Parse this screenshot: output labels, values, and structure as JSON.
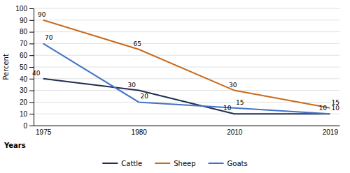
{
  "chart_data": {
    "type": "line",
    "categories": [
      "1975",
      "1980",
      "2010",
      "2019"
    ],
    "series": [
      {
        "name": "Cattle",
        "color": "#1f2d50",
        "values": [
          40,
          30,
          10,
          10
        ]
      },
      {
        "name": "Sheep",
        "color": "#c96a1a",
        "values": [
          90,
          65,
          30,
          15
        ]
      },
      {
        "name": "Goats",
        "color": "#4472c4",
        "values": [
          70,
          20,
          15,
          10
        ]
      }
    ],
    "x_label": "Years",
    "y_label": "Percent",
    "ylim": [
      0,
      100
    ],
    "yticks": [
      0,
      10,
      20,
      30,
      40,
      50,
      60,
      70,
      80,
      90,
      100
    ],
    "grid": true,
    "legend": "bottom",
    "data_labels": true
  }
}
